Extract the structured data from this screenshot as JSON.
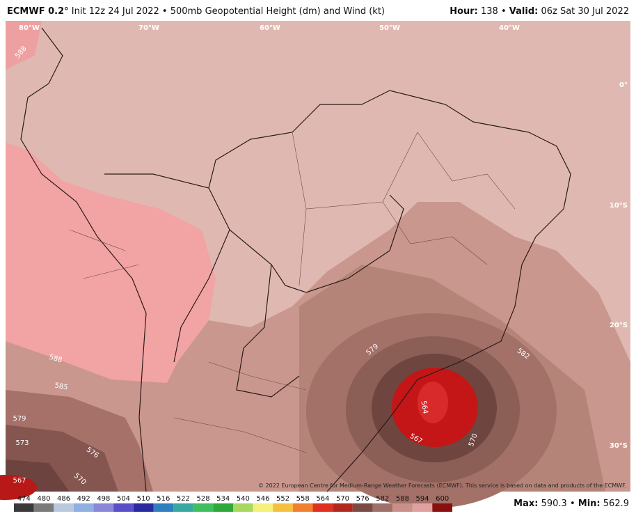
{
  "header": {
    "model": "ECMWF 0.2°",
    "description": "Init 12z 24 Jul 2022 • 500mb Geopotential Height (dm) and Wind (kt)",
    "hour_label": "Hour:",
    "hour": "138 •",
    "valid_label": "Valid:",
    "valid": "06z Sat 30 Jul 2022"
  },
  "longitude_labels": [
    "80°W",
    "70°W",
    "60°W",
    "50°W",
    "40°W"
  ],
  "latitude_labels": [
    "0°",
    "10°S",
    "20°S",
    "30°S"
  ],
  "contour_labels": [
    "588",
    "588",
    "585",
    "579",
    "573",
    "576",
    "570",
    "567",
    "579",
    "582",
    "564",
    "567",
    "570"
  ],
  "copyright": "© 2022 European Centre for Medium-Range Weather Forecasts (ECMWF). This service is based on data and products of the ECMWF.",
  "colorbar": {
    "labels": [
      "474",
      "480",
      "486",
      "492",
      "498",
      "504",
      "510",
      "516",
      "522",
      "528",
      "534",
      "540",
      "546",
      "552",
      "558",
      "564",
      "570",
      "576",
      "582",
      "588",
      "594",
      "600"
    ],
    "colors": [
      "#3a3a3a",
      "#7a7a7a",
      "#b9c8dc",
      "#8fb0e0",
      "#8a86d8",
      "#5a4fc8",
      "#2a2aa0",
      "#2f7fbf",
      "#39a8a0",
      "#3fbf5f",
      "#2fa83a",
      "#a8d860",
      "#f5f07a",
      "#f5c040",
      "#f08030",
      "#e03020",
      "#b02820",
      "#7a4a44",
      "#a07068",
      "#c89088",
      "#e0a0a0",
      "#8a1010"
    ]
  },
  "stats": {
    "max_label": "Max:",
    "max": "590.3 •",
    "min_label": "Min:",
    "min": "562.9"
  }
}
